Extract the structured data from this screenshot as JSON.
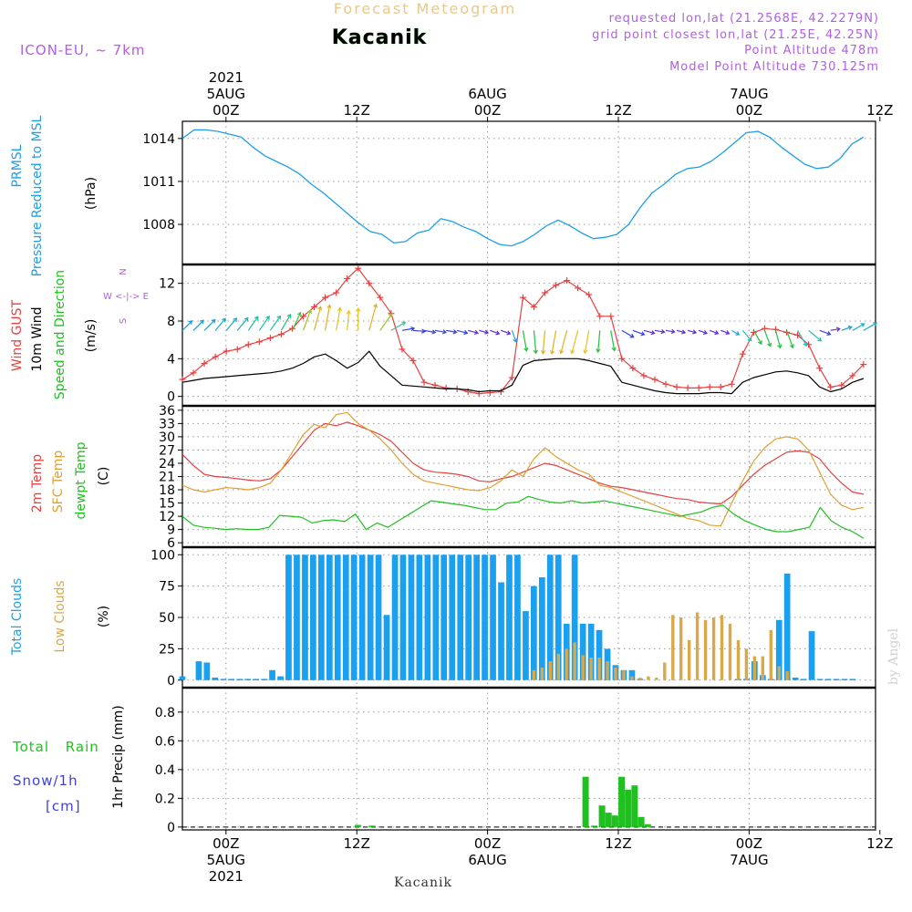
{
  "header": {
    "product": "Forecast Meteogram",
    "station": "Kacanik",
    "model": "ICON-EU, ~ 7km",
    "requested": "requested lon,lat (21.2568E, 42.2279N)",
    "grid_point": "grid point closest lon,lat (21.25E, 42.25N)",
    "point_altitude": "Point Altitude 478m",
    "model_altitude": "Model Point Altitude 730.125m",
    "watermark": "by Angel",
    "footer_station": "Kacanik"
  },
  "colors": {
    "pressure": "#1e9ee8",
    "gust": "#e84040",
    "wind": "#000000",
    "t2m": "#e84040",
    "sfc": "#e0a030",
    "dew": "#20c020",
    "total_clouds": "#1aa0f0",
    "low_clouds": "#d9a84a",
    "rain": "#20c020",
    "snow": "#4040e0",
    "purple": "#b060e0",
    "header_tan": "#e8c88c",
    "grid": "#999999"
  },
  "chart_data": {
    "type": "meteogram",
    "time_axis": {
      "start_hour": -4,
      "end_hour": 59,
      "top_labels": [
        {
          "hour": 0,
          "lines": [
            "2021",
            "5AUG",
            "00Z"
          ]
        },
        {
          "hour": 12,
          "lines": [
            "12Z"
          ]
        },
        {
          "hour": 24,
          "lines": [
            "6AUG",
            "00Z"
          ]
        },
        {
          "hour": 36,
          "lines": [
            "12Z"
          ]
        },
        {
          "hour": 48,
          "lines": [
            "7AUG",
            "00Z"
          ]
        },
        {
          "hour": 60,
          "lines": [
            "12Z"
          ]
        }
      ],
      "bottom_labels": [
        {
          "hour": 0,
          "lines": [
            "00Z",
            "5AUG",
            "2021"
          ]
        },
        {
          "hour": 12,
          "lines": [
            "12Z"
          ]
        },
        {
          "hour": 24,
          "lines": [
            "00Z",
            "6AUG"
          ]
        },
        {
          "hour": 36,
          "lines": [
            "12Z"
          ]
        },
        {
          "hour": 48,
          "lines": [
            "00Z",
            "7AUG"
          ]
        },
        {
          "hour": 60,
          "lines": [
            "12Z"
          ]
        }
      ]
    },
    "panels": {
      "pressure": {
        "labels": [
          "PRMSL",
          "Pressure Reduced to MSL",
          "(hPa)"
        ],
        "ylim": [
          1005.2,
          1015.2
        ],
        "ticks": [
          1008,
          1011,
          1014
        ],
        "tick_labels": [
          "1008",
          "1011",
          "1014"
        ],
        "values": [
          1014.0,
          1014.6,
          1014.6,
          1014.5,
          1014.3,
          1014.1,
          1013.4,
          1012.8,
          1012.4,
          1012.0,
          1011.5,
          1010.8,
          1010.2,
          1009.5,
          1008.8,
          1008.1,
          1007.5,
          1007.3,
          1006.7,
          1006.8,
          1007.4,
          1007.6,
          1008.4,
          1008.2,
          1007.8,
          1007.5,
          1007.0,
          1006.6,
          1006.5,
          1006.8,
          1007.3,
          1007.9,
          1008.3,
          1007.9,
          1007.4,
          1007.0,
          1007.1,
          1007.3,
          1008.0,
          1009.2,
          1010.2,
          1010.8,
          1011.5,
          1011.9,
          1012.0,
          1012.4,
          1013.0,
          1013.7,
          1014.4,
          1014.5,
          1014.1,
          1013.4,
          1012.8,
          1012.2,
          1011.9,
          1012.0,
          1012.6,
          1013.6,
          1014.1
        ]
      },
      "wind": {
        "labels": [
          "Wind GUST",
          "10m Wind",
          "Speed and Direction",
          "(m/s)"
        ],
        "compass": [
          "N",
          "W <-|-> E",
          "S"
        ],
        "ylim": [
          -1,
          14
        ],
        "ticks": [
          0,
          4,
          8,
          12
        ],
        "tick_labels": [
          "0",
          "4",
          "8",
          "12"
        ],
        "gust": [
          1.8,
          2.5,
          3.5,
          4.2,
          4.8,
          5.0,
          5.5,
          5.8,
          6.2,
          6.6,
          7.2,
          8.5,
          9.5,
          10.5,
          11.0,
          12.5,
          13.6,
          12.0,
          10.5,
          8.8,
          5.0,
          3.8,
          1.5,
          1.2,
          0.9,
          0.8,
          0.5,
          0.3,
          0.4,
          0.5,
          2.0,
          10.5,
          9.5,
          11.0,
          11.8,
          12.3,
          11.5,
          10.8,
          8.5,
          8.5,
          4.0,
          3.0,
          2.2,
          1.8,
          1.3,
          1.0,
          0.9,
          0.9,
          1.0,
          1.0,
          1.3,
          4.5,
          6.8,
          7.2,
          7.1,
          6.8,
          6.5,
          5.5,
          3.0,
          1.0,
          1.2,
          2.2,
          3.4
        ],
        "wind": [
          1.5,
          1.7,
          1.9,
          2.0,
          2.1,
          2.2,
          2.3,
          2.4,
          2.5,
          2.7,
          3.0,
          3.5,
          4.2,
          4.5,
          3.8,
          3.0,
          3.6,
          4.8,
          3.2,
          2.2,
          1.2,
          1.1,
          1.0,
          0.9,
          0.8,
          0.8,
          0.7,
          0.5,
          0.6,
          0.6,
          1.2,
          3.3,
          3.8,
          3.9,
          4.0,
          4.0,
          4.0,
          3.8,
          3.5,
          3.2,
          1.5,
          1.2,
          0.9,
          0.6,
          0.4,
          0.3,
          0.3,
          0.3,
          0.4,
          0.4,
          0.3,
          1.5,
          2.0,
          2.3,
          2.6,
          2.7,
          2.5,
          2.2,
          1.0,
          0.5,
          0.8,
          1.5,
          1.9
        ],
        "arrow_dirs": [
          225,
          225,
          225,
          220,
          220,
          220,
          215,
          215,
          215,
          210,
          205,
          200,
          195,
          190,
          190,
          185,
          180,
          195,
          215,
          240,
          260,
          275,
          280,
          280,
          280,
          285,
          285,
          285,
          290,
          290,
          340,
          350,
          355,
          5,
          10,
          15,
          15,
          10,
          5,
          350,
          300,
          290,
          285,
          280,
          280,
          285,
          285,
          290,
          290,
          290,
          300,
          320,
          330,
          340,
          345,
          340,
          330,
          310,
          290,
          260,
          250,
          240,
          240
        ],
        "arrow_colors": [
          "#10a0e0",
          "#10a0e0",
          "#10a0e0",
          "#10b0c8",
          "#10b0c8",
          "#10b8b0",
          "#10c0a0",
          "#10c0a0",
          "#10c898",
          "#20c080",
          "#40c040",
          "#a0c020",
          "#e0b020",
          "#e8b020",
          "#e8c020",
          "#e8c020",
          "#e8c020",
          "#e0b020",
          "#a0c020",
          "#40c0a0",
          "#3040e0",
          "#3040e0",
          "#3040e0",
          "#3040e0",
          "#3040e0",
          "#3040e0",
          "#6030d0",
          "#6030d0",
          "#6030d0",
          "#6030d0",
          "#20a0e0",
          "#20c040",
          "#20c040",
          "#e8b020",
          "#e8b020",
          "#e8b020",
          "#e8c020",
          "#e8c020",
          "#20c040",
          "#20c040",
          "#3040e0",
          "#3040e0",
          "#6030d0",
          "#6030d0",
          "#6030d0",
          "#6030d0",
          "#6030d0",
          "#6030d0",
          "#6030d0",
          "#6030d0",
          "#20a0e0",
          "#20c0c0",
          "#20c040",
          "#20c040",
          "#20c040",
          "#20c040",
          "#20c0c0",
          "#20c0c0",
          "#4040e0",
          "#6030d0",
          "#10a0e0",
          "#10b0c8",
          "#10b0c8"
        ]
      },
      "temperature": {
        "labels": [
          "2m Temp",
          "SFC Temp",
          "dewpt Temp",
          "(C)"
        ],
        "ylim": [
          5,
          37
        ],
        "ticks": [
          6,
          9,
          12,
          15,
          18,
          21,
          24,
          27,
          30,
          33,
          36
        ],
        "tick_labels": [
          "6",
          "9",
          "12",
          "15",
          "18",
          "21",
          "24",
          "27",
          "30",
          "33",
          "36"
        ],
        "t2m": [
          26.0,
          23.5,
          21.5,
          21.0,
          20.8,
          20.5,
          20.2,
          20.0,
          20.5,
          22.5,
          25.5,
          28.5,
          31.5,
          33.0,
          32.5,
          33.3,
          32.5,
          31.5,
          30.5,
          29.0,
          26.5,
          24.0,
          22.5,
          22.0,
          21.8,
          21.5,
          21.0,
          20.0,
          19.8,
          20.5,
          21.0,
          22.0,
          23.0,
          24.0,
          23.5,
          22.5,
          21.5,
          20.5,
          19.5,
          18.8,
          18.5,
          18.0,
          17.5,
          17.0,
          16.5,
          16.0,
          15.8,
          15.2,
          15.0,
          14.8,
          16.5,
          19.0,
          21.5,
          23.5,
          25.0,
          26.5,
          26.8,
          26.5,
          25.0,
          22.0,
          19.5,
          17.5,
          17.0
        ],
        "sfc": [
          19.0,
          18.0,
          17.5,
          18.0,
          18.5,
          18.3,
          18.0,
          18.5,
          19.5,
          22.5,
          26.5,
          30.5,
          32.8,
          32.0,
          35.0,
          35.5,
          33.0,
          31.5,
          29.5,
          27.0,
          24.0,
          21.5,
          20.0,
          19.5,
          19.0,
          18.5,
          18.0,
          17.8,
          18.5,
          20.0,
          22.5,
          21.0,
          25.0,
          27.5,
          25.5,
          24.0,
          22.5,
          21.5,
          19.0,
          18.5,
          17.5,
          16.5,
          15.5,
          14.5,
          13.5,
          12.5,
          11.5,
          11.0,
          10.0,
          9.8,
          15.0,
          20.0,
          24.5,
          27.5,
          29.5,
          30.0,
          29.5,
          27.0,
          22.0,
          17.0,
          14.5,
          13.5,
          14.0
        ],
        "dew": [
          12.0,
          10.0,
          9.5,
          9.3,
          9.0,
          9.2,
          9.0,
          9.0,
          9.5,
          12.2,
          12.0,
          11.8,
          10.5,
          11.0,
          11.2,
          10.8,
          12.5,
          9.0,
          10.5,
          9.5,
          11.0,
          12.5,
          14.0,
          15.5,
          15.2,
          14.8,
          14.5,
          14.0,
          13.5,
          13.5,
          15.0,
          15.2,
          16.5,
          15.8,
          15.2,
          15.0,
          15.5,
          15.0,
          15.2,
          15.5,
          15.0,
          14.5,
          14.0,
          13.5,
          13.0,
          12.5,
          12.0,
          12.5,
          13.0,
          14.0,
          14.5,
          12.5,
          11.0,
          10.0,
          9.0,
          8.5,
          8.5,
          9.0,
          9.5,
          14.0,
          11.0,
          9.5,
          8.5,
          7.0
        ],
        "dew_start_hour": -4,
        "dew_end_hour": 59
      },
      "clouds": {
        "labels": [
          "Total Clouds",
          "Low Clouds",
          "(%)"
        ],
        "ylim": [
          -6,
          106
        ],
        "ticks": [
          0,
          25,
          50,
          75,
          100
        ],
        "tick_labels": [
          "0",
          "25",
          "50",
          "75",
          "100"
        ],
        "total": [
          3,
          0,
          15,
          14,
          2,
          1,
          1,
          1,
          1,
          1,
          1,
          8,
          3,
          100,
          100,
          100,
          100,
          100,
          100,
          100,
          100,
          100,
          100,
          100,
          100,
          52,
          100,
          100,
          100,
          100,
          100,
          100,
          100,
          100,
          100,
          100,
          100,
          100,
          100,
          78,
          100,
          100,
          55,
          75,
          82,
          100,
          100,
          45,
          100,
          45,
          45,
          40,
          25,
          12,
          8,
          8,
          1,
          0,
          0,
          0,
          0,
          0,
          0,
          0,
          0,
          0,
          0,
          0,
          1,
          1,
          15,
          4,
          1,
          48,
          85,
          2,
          1,
          39,
          1,
          1,
          1,
          1,
          1
        ],
        "low": [
          0,
          0,
          0,
          0,
          0,
          0,
          0,
          0,
          0,
          0,
          0,
          0,
          0,
          0,
          0,
          0,
          0,
          0,
          0,
          0,
          0,
          0,
          0,
          0,
          0,
          0,
          0,
          0,
          0,
          0,
          0,
          0,
          0,
          0,
          0,
          0,
          0,
          0,
          0,
          0,
          0,
          0,
          0,
          8,
          10,
          15,
          21,
          25,
          30,
          20,
          18,
          18,
          15,
          10,
          8,
          3,
          2,
          3,
          2,
          14,
          52,
          50,
          32,
          54,
          48,
          50,
          52,
          45,
          32,
          25,
          19,
          19,
          40,
          11,
          7,
          0,
          0,
          0,
          0,
          0,
          0,
          0,
          0
        ],
        "bar_hours_start": -4.0,
        "bar_step": 0.75
      },
      "precip": {
        "labels": [
          "Total Rain",
          "Snow/1h",
          "[cm]",
          "1hr Precip (mm)"
        ],
        "ylim": [
          -0.02,
          0.97
        ],
        "ticks": [
          0,
          0.2,
          0.4,
          0.6,
          0.8
        ],
        "tick_labels": [
          "0",
          "0.2",
          "0.4",
          "0.6",
          "0.8"
        ],
        "bars": [
          {
            "hour": 12.1,
            "value": 0.015
          },
          {
            "hour": 13.4,
            "value": 0.01
          },
          {
            "hour": 33.0,
            "value": 0.35
          },
          {
            "hour": 33.8,
            "value": 0.01
          },
          {
            "hour": 34.5,
            "value": 0.15
          },
          {
            "hour": 35.1,
            "value": 0.1
          },
          {
            "hour": 35.7,
            "value": 0.08
          },
          {
            "hour": 36.3,
            "value": 0.35
          },
          {
            "hour": 36.9,
            "value": 0.26
          },
          {
            "hour": 37.5,
            "value": 0.29
          },
          {
            "hour": 38.1,
            "value": 0.07
          },
          {
            "hour": 38.7,
            "value": 0.02
          }
        ]
      }
    }
  }
}
